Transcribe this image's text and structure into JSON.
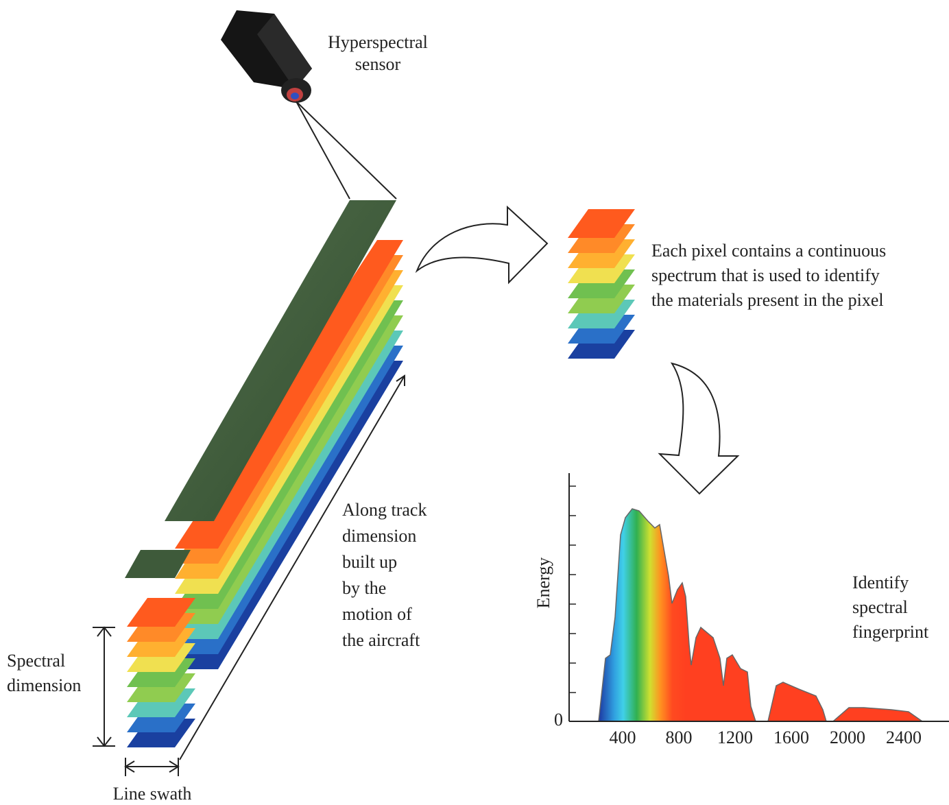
{
  "sensor_label": [
    "Hyperspectral",
    "sensor"
  ],
  "pixel_text": [
    "Each pixel contains a continuous",
    "spectrum that is used to identify",
    "the materials present in the pixel"
  ],
  "along_track_label": [
    "Along track",
    "dimension",
    "built up",
    "by the",
    "motion of",
    "the aircraft"
  ],
  "spectral_dimension_label": [
    "Spectral",
    "dimension"
  ],
  "line_swath_label": "Line swath",
  "fingerprint_label": [
    "Identify",
    "spectral",
    "fingerprint"
  ],
  "spectrum_plot": {
    "y_label": "Energy",
    "y_origin": "0",
    "x_ticks": [
      "400",
      "800",
      "1200",
      "1600",
      "2000",
      "2400"
    ]
  }
}
